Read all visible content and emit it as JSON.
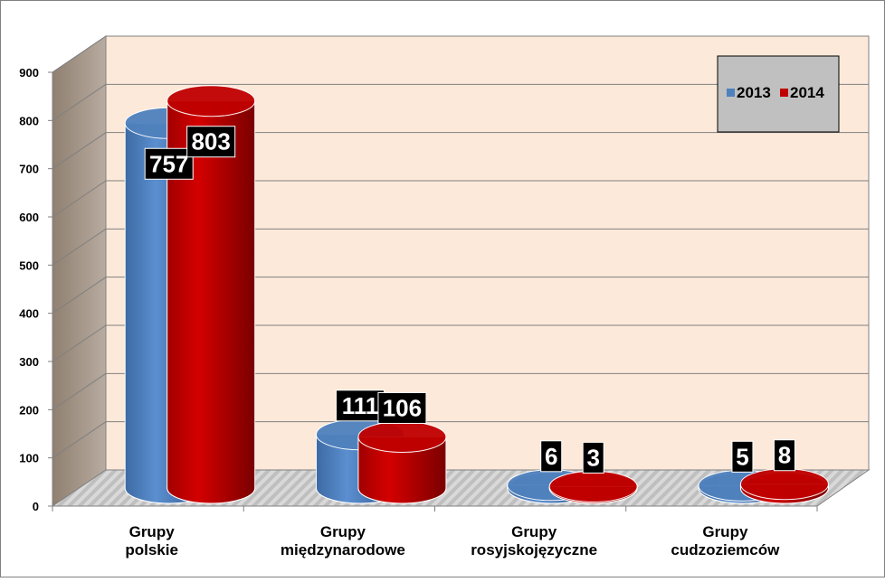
{
  "chart_data": {
    "type": "bar",
    "style": "3d-cylinder",
    "title": "",
    "xlabel": "",
    "ylabel": "",
    "ylim": [
      0,
      900
    ],
    "yticks": [
      0,
      100,
      200,
      300,
      400,
      500,
      600,
      700,
      800,
      900
    ],
    "grid": true,
    "legend_position": "top-right",
    "categories": [
      [
        "Grupy",
        "polskie"
      ],
      [
        "Grupy",
        "międzynarodowe"
      ],
      [
        "Grupy",
        "rosyjskojęzyczne"
      ],
      [
        "Grupy",
        "cudzoziemców"
      ]
    ],
    "series": [
      {
        "name": "2013",
        "color": "#4f81bd",
        "values": [
          757,
          111,
          6,
          5
        ]
      },
      {
        "name": "2014",
        "color": "#c00000",
        "values": [
          803,
          106,
          3,
          8
        ]
      }
    ],
    "colors": {
      "back_wall": "#fde9d9",
      "side_wall": "#a6a6a6",
      "legend_bg": "#c0c0c0",
      "label_bg": "#000000",
      "label_text": "#ffffff"
    }
  }
}
